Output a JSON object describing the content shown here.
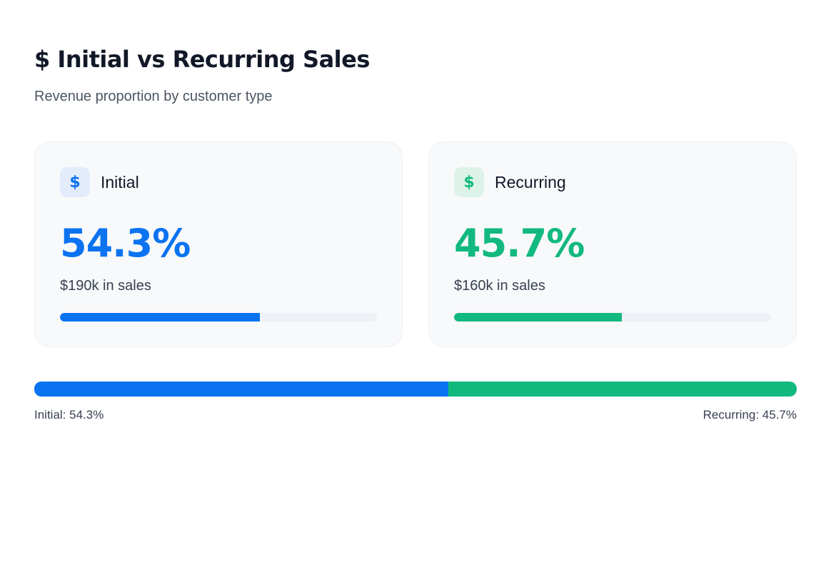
{
  "header": {
    "title": "$ Initial vs Recurring Sales",
    "subtitle": "Revenue proportion by customer type"
  },
  "cards": [
    {
      "id": "initial",
      "icon": "dollar-icon",
      "icon_glyph": "$",
      "label": "Initial",
      "percent_text": "54.3%",
      "sales_text": "$190k in sales",
      "progress": 0.63,
      "color": "#0b73f0"
    },
    {
      "id": "recurring",
      "icon": "dollar-icon",
      "icon_glyph": "$",
      "label": "Recurring",
      "percent_text": "45.7%",
      "sales_text": "$160k in sales",
      "progress": 0.53,
      "color": "#12b97e"
    }
  ],
  "split": {
    "initial_share": 54.3,
    "recurring_share": 45.7,
    "initial_label": "Initial: 54.3%",
    "recurring_label": "Recurring: 45.7%"
  },
  "colors": {
    "initial": "#0b73f0",
    "recurring": "#12b97e",
    "track": "#eef1f5",
    "card_bg": "#f8f9fb"
  }
}
